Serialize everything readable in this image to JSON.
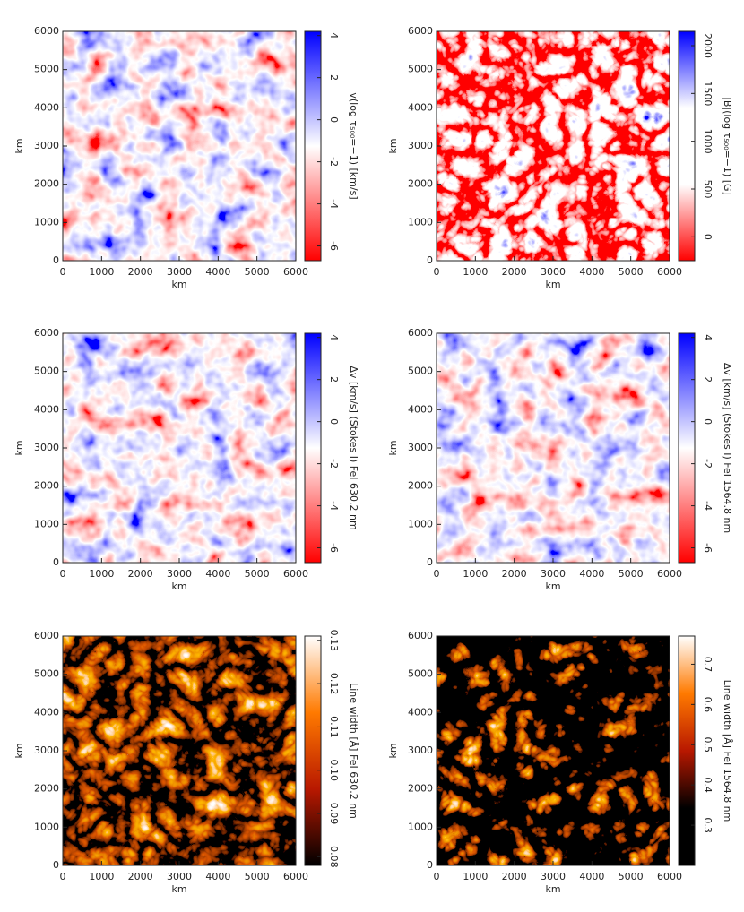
{
  "chart_data": [
    {
      "type": "heatmap",
      "xlabel": "km",
      "ylabel": "km",
      "xlim": [
        0,
        6000
      ],
      "xticks": [
        0,
        1000,
        2000,
        3000,
        4000,
        5000,
        6000
      ],
      "ylim": [
        0,
        6000
      ],
      "yticks": [
        0,
        1000,
        2000,
        3000,
        4000,
        5000,
        6000
      ],
      "colorbar_label": "v(log τ₅₀₀=−1) [km/s]",
      "clim": [
        -6.7,
        4.2
      ],
      "cticks": [
        -6,
        -4,
        -2,
        0,
        2,
        4
      ],
      "colorscale": [
        "#ff0000",
        "#ffffff",
        "#0000ff"
      ]
    },
    {
      "type": "heatmap",
      "xlabel": "km",
      "ylabel": "km",
      "xlim": [
        0,
        6000
      ],
      "xticks": [
        0,
        1000,
        2000,
        3000,
        4000,
        5000,
        6000
      ],
      "ylim": [
        0,
        6000
      ],
      "yticks": [
        0,
        1000,
        2000,
        3000,
        4000,
        5000,
        6000
      ],
      "colorbar_label": "|B|(log τ₅₀₀=−1) [G]",
      "clim": [
        -250,
        2150
      ],
      "cticks": [
        0,
        500,
        1000,
        1500,
        2000
      ],
      "colorscale": [
        "#ff0000",
        "#ffffff",
        "#ffffff",
        "#0000ff"
      ]
    },
    {
      "type": "heatmap",
      "xlabel": "km",
      "ylabel": "km",
      "xlim": [
        0,
        6000
      ],
      "xticks": [
        0,
        1000,
        2000,
        3000,
        4000,
        5000,
        6000
      ],
      "ylim": [
        0,
        6000
      ],
      "yticks": [
        0,
        1000,
        2000,
        3000,
        4000,
        5000,
        6000
      ],
      "colorbar_label": "Δv [km/s] (Stokes I) FeI 630.2 nm",
      "clim": [
        -6.7,
        4.2
      ],
      "cticks": [
        -6,
        -4,
        -2,
        0,
        2,
        4
      ],
      "colorscale": [
        "#ff0000",
        "#ffffff",
        "#0000ff"
      ]
    },
    {
      "type": "heatmap",
      "xlabel": "km",
      "ylabel": "km",
      "xlim": [
        0,
        6000
      ],
      "xticks": [
        0,
        1000,
        2000,
        3000,
        4000,
        5000,
        6000
      ],
      "ylim": [
        0,
        6000
      ],
      "yticks": [
        0,
        1000,
        2000,
        3000,
        4000,
        5000,
        6000
      ],
      "colorbar_label": "Δv [km/s] (Stokes I) FeI 1564.8 nm",
      "clim": [
        -6.7,
        4.2
      ],
      "cticks": [
        -6,
        -4,
        -2,
        0,
        2,
        4
      ],
      "colorscale": [
        "#ff0000",
        "#ffffff",
        "#0000ff"
      ]
    },
    {
      "type": "heatmap",
      "xlabel": "km",
      "ylabel": "km",
      "xlim": [
        0,
        6000
      ],
      "xticks": [
        0,
        1000,
        2000,
        3000,
        4000,
        5000,
        6000
      ],
      "ylim": [
        0,
        6000
      ],
      "yticks": [
        0,
        1000,
        2000,
        3000,
        4000,
        5000,
        6000
      ],
      "colorbar_label": "Line width [Å] FeI 630.2 nm",
      "clim": [
        0.078,
        0.131
      ],
      "cticks": [
        {
          "value": 0.08,
          "label": "0.08"
        },
        {
          "value": 0.09,
          "label": "0.09"
        },
        {
          "value": 0.1,
          "label": "0.10"
        },
        0.11,
        0.12,
        0.13
      ],
      "colorscale": [
        "#000000",
        "#b81800",
        "#ff7a00",
        "#ffffff"
      ]
    },
    {
      "type": "heatmap",
      "xlabel": "km",
      "ylabel": "km",
      "xlim": [
        0,
        6000
      ],
      "xticks": [
        0,
        1000,
        2000,
        3000,
        4000,
        5000,
        6000
      ],
      "ylim": [
        0,
        6000
      ],
      "yticks": [
        0,
        1000,
        2000,
        3000,
        4000,
        5000,
        6000
      ],
      "colorbar_label": "Line width [Å] FeI 1564.8 nm",
      "clim": [
        0.2,
        0.77
      ],
      "cticks": [
        0.3,
        0.4,
        0.5,
        0.6,
        0.7
      ],
      "colorscale": [
        "#000000",
        "#000000",
        "#b81800",
        "#ff7a00",
        "#ffffff"
      ]
    }
  ]
}
